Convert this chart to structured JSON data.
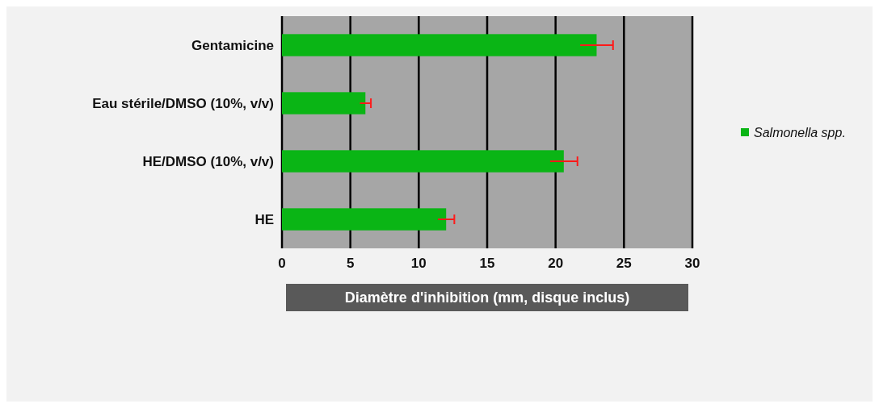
{
  "chart_data": {
    "type": "bar",
    "orientation": "horizontal",
    "categories": [
      "Gentamicine",
      "Eau stérile/DMSO (10%, v/v)",
      "HE/DMSO (10%, v/v)",
      "HE"
    ],
    "series": [
      {
        "name": "Salmonella spp.",
        "color": "#0ab515",
        "values": [
          23.0,
          6.1,
          20.6,
          12.0
        ],
        "errors": [
          1.2,
          0.4,
          1.0,
          0.6
        ]
      }
    ],
    "xlabel": "Diamètre d'inhibition (mm, disque inclus)",
    "xlim": [
      0,
      30
    ],
    "xticks": [
      0,
      5,
      10,
      15,
      20,
      25,
      30
    ],
    "grid": "x",
    "legend": "right"
  }
}
